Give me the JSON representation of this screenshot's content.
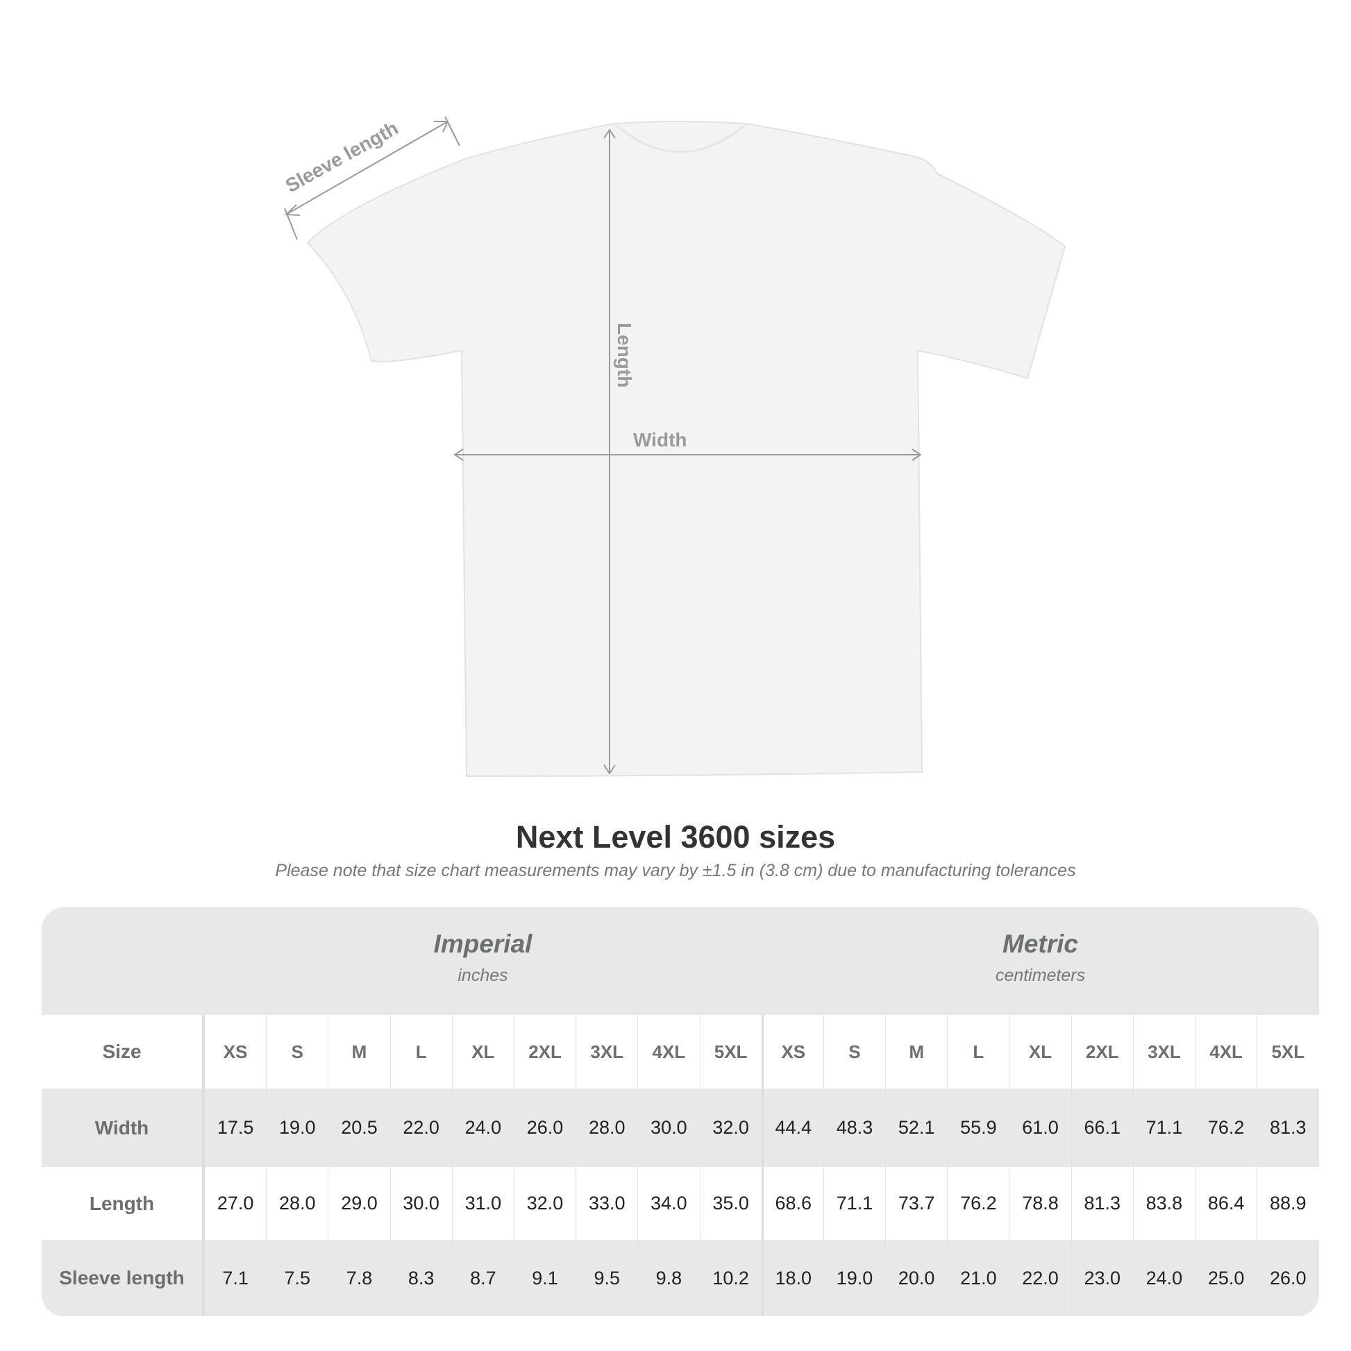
{
  "diagram": {
    "labels": {
      "sleeve": "Sleeve length",
      "length": "Length",
      "width": "Width"
    },
    "shirt_color": "#f2f2f2",
    "arrow_color": "#9a9a9a"
  },
  "title": "Next Level 3600 sizes",
  "subtitle": "Please note that size chart measurements may vary by ±1.5 in (3.8 cm) due to manufacturing tolerances",
  "table": {
    "imperial": {
      "title": "Imperial",
      "unit": "inches"
    },
    "metric": {
      "title": "Metric",
      "unit": "centimeters"
    },
    "size_label": "Size",
    "sizes": [
      "XS",
      "S",
      "M",
      "L",
      "XL",
      "2XL",
      "3XL",
      "4XL",
      "5XL"
    ],
    "rows": [
      {
        "label": "Width",
        "imperial": [
          "17.5",
          "19.0",
          "20.5",
          "22.0",
          "24.0",
          "26.0",
          "28.0",
          "30.0",
          "32.0"
        ],
        "metric": [
          "44.4",
          "48.3",
          "52.1",
          "55.9",
          "61.0",
          "66.1",
          "71.1",
          "76.2",
          "81.3"
        ]
      },
      {
        "label": "Length",
        "imperial": [
          "27.0",
          "28.0",
          "29.0",
          "30.0",
          "31.0",
          "32.0",
          "33.0",
          "34.0",
          "35.0"
        ],
        "metric": [
          "68.6",
          "71.1",
          "73.7",
          "76.2",
          "78.8",
          "81.3",
          "83.8",
          "86.4",
          "88.9"
        ]
      },
      {
        "label": "Sleeve length",
        "imperial": [
          "7.1",
          "7.5",
          "7.8",
          "8.3",
          "8.7",
          "9.1",
          "9.5",
          "9.8",
          "10.2"
        ],
        "metric": [
          "18.0",
          "19.0",
          "20.0",
          "21.0",
          "22.0",
          "23.0",
          "24.0",
          "25.0",
          "26.0"
        ]
      }
    ]
  }
}
